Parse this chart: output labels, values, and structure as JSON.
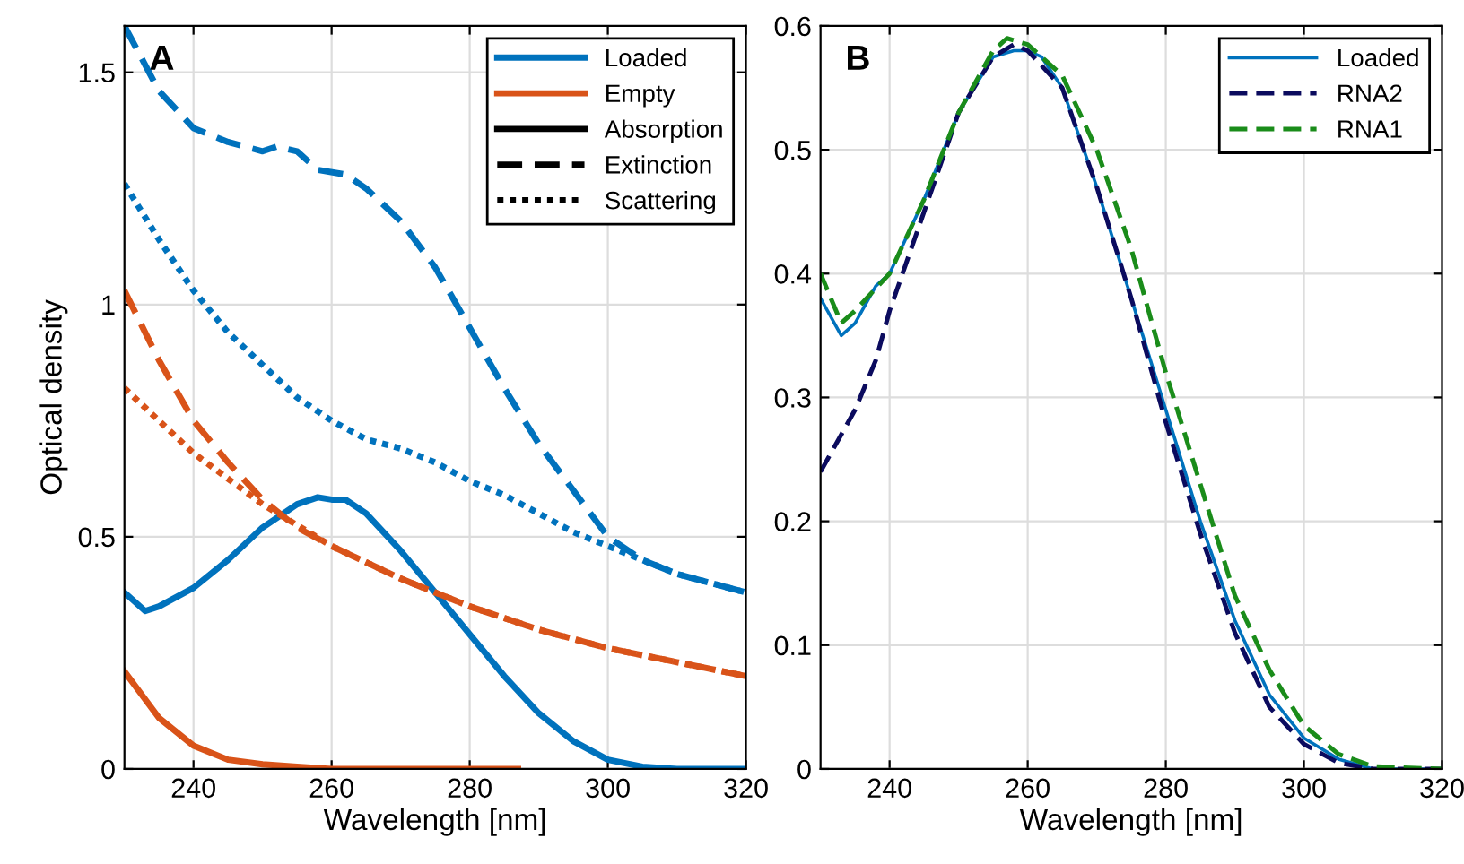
{
  "chart_data": [
    {
      "type": "line",
      "xlabel": "Wavelength [nm]",
      "ylabel": "Optical density",
      "annotations": [
        "A"
      ],
      "xlim": [
        230,
        320
      ],
      "xticks": [
        240,
        260,
        280,
        300,
        320
      ],
      "ylim": [
        0,
        1.6
      ],
      "yticks": [
        0,
        0.5,
        1,
        1.5
      ],
      "grid": true,
      "legend": "top right",
      "series": [
        {
          "name": "Loaded",
          "color": "#0072bd",
          "line_style": "solid",
          "x": [
            230,
            233,
            235,
            240,
            245,
            250,
            255,
            258,
            260,
            262,
            265,
            270,
            275,
            280,
            285,
            290,
            295,
            300,
            305,
            310,
            320
          ],
          "values": [
            0.38,
            0.34,
            0.35,
            0.39,
            0.45,
            0.52,
            0.57,
            0.585,
            0.58,
            0.58,
            0.55,
            0.47,
            0.38,
            0.29,
            0.2,
            0.12,
            0.06,
            0.02,
            0.005,
            0,
            0
          ]
        },
        {
          "name": "Empty",
          "color": "#d95319",
          "line_style": "solid",
          "x": [
            230,
            235,
            240,
            245,
            250,
            255,
            260,
            270,
            280,
            287
          ],
          "values": [
            0.21,
            0.11,
            0.05,
            0.02,
            0.01,
            0.005,
            0,
            0,
            0,
            0
          ]
        },
        {
          "name": "Absorption",
          "color": "#000000",
          "line_style": "solid"
        },
        {
          "name": "Extinction",
          "color": "#000000",
          "line_style": "dashed"
        },
        {
          "name": "Scattering",
          "color": "#000000",
          "line_style": "dotted"
        },
        {
          "color": "#0072bd",
          "line_style": "dashed",
          "x": [
            230,
            235,
            240,
            245,
            250,
            252,
            255,
            258,
            262,
            265,
            270,
            275,
            280,
            285,
            290,
            295,
            300,
            305,
            310,
            315,
            320
          ],
          "values": [
            1.6,
            1.46,
            1.38,
            1.35,
            1.33,
            1.34,
            1.33,
            1.29,
            1.28,
            1.25,
            1.18,
            1.08,
            0.95,
            0.82,
            0.7,
            0.6,
            0.5,
            0.45,
            0.42,
            0.4,
            0.38
          ]
        },
        {
          "color": "#0072bd",
          "line_style": "dotted",
          "x": [
            230,
            235,
            240,
            245,
            250,
            255,
            260,
            265,
            270,
            275,
            280,
            285,
            290,
            295,
            300,
            305,
            310,
            315,
            320
          ],
          "values": [
            1.26,
            1.14,
            1.03,
            0.94,
            0.87,
            0.8,
            0.75,
            0.71,
            0.69,
            0.66,
            0.62,
            0.59,
            0.55,
            0.51,
            0.48,
            0.45,
            0.42,
            0.4,
            0.38
          ]
        },
        {
          "color": "#d95319",
          "line_style": "dashed",
          "x": [
            230,
            235,
            240,
            245,
            250,
            255,
            260,
            270,
            280,
            290,
            300,
            310,
            320
          ],
          "values": [
            1.03,
            0.88,
            0.75,
            0.66,
            0.58,
            0.52,
            0.48,
            0.41,
            0.35,
            0.3,
            0.26,
            0.23,
            0.2
          ]
        },
        {
          "color": "#d95319",
          "line_style": "dotted",
          "x": [
            230,
            240,
            250,
            260,
            270,
            280,
            290,
            300,
            310,
            320
          ],
          "values": [
            0.82,
            0.68,
            0.57,
            0.48,
            0.41,
            0.35,
            0.3,
            0.26,
            0.23,
            0.2
          ]
        }
      ]
    },
    {
      "type": "line",
      "xlabel": "Wavelength [nm]",
      "annotations": [
        "B"
      ],
      "xlim": [
        230,
        320
      ],
      "xticks": [
        240,
        260,
        280,
        300,
        320
      ],
      "ylim": [
        0,
        0.6
      ],
      "yticks": [
        0,
        0.1,
        0.2,
        0.3,
        0.4,
        0.5,
        0.6
      ],
      "grid": true,
      "legend": "top right",
      "series": [
        {
          "name": "Loaded",
          "color": "#0072bd",
          "line_style": "solid",
          "x": [
            230,
            233,
            235,
            238,
            240,
            245,
            250,
            255,
            258,
            260,
            262,
            265,
            270,
            275,
            280,
            285,
            290,
            295,
            300,
            305,
            310,
            320
          ],
          "values": [
            0.38,
            0.35,
            0.36,
            0.39,
            0.4,
            0.46,
            0.53,
            0.575,
            0.58,
            0.58,
            0.575,
            0.55,
            0.47,
            0.38,
            0.29,
            0.2,
            0.12,
            0.06,
            0.025,
            0.008,
            0,
            0
          ]
        },
        {
          "name": "RNA2",
          "color": "#0b0b5e",
          "line_style": "dashed",
          "x": [
            230,
            235,
            238,
            240,
            245,
            250,
            255,
            258,
            260,
            265,
            270,
            275,
            280,
            285,
            290,
            295,
            300,
            305,
            310,
            320
          ],
          "values": [
            0.24,
            0.29,
            0.33,
            0.37,
            0.45,
            0.53,
            0.575,
            0.585,
            0.58,
            0.55,
            0.47,
            0.38,
            0.28,
            0.19,
            0.11,
            0.05,
            0.02,
            0.005,
            0,
            0
          ]
        },
        {
          "name": "RNA1",
          "color": "#1a8c1a",
          "line_style": "dashed",
          "x": [
            230,
            233,
            235,
            240,
            245,
            250,
            255,
            257,
            260,
            265,
            270,
            275,
            280,
            285,
            290,
            295,
            300,
            305,
            310,
            320
          ],
          "values": [
            0.4,
            0.36,
            0.37,
            0.4,
            0.46,
            0.53,
            0.58,
            0.59,
            0.585,
            0.56,
            0.5,
            0.42,
            0.32,
            0.23,
            0.14,
            0.08,
            0.035,
            0.012,
            0.002,
            0
          ]
        }
      ]
    }
  ]
}
